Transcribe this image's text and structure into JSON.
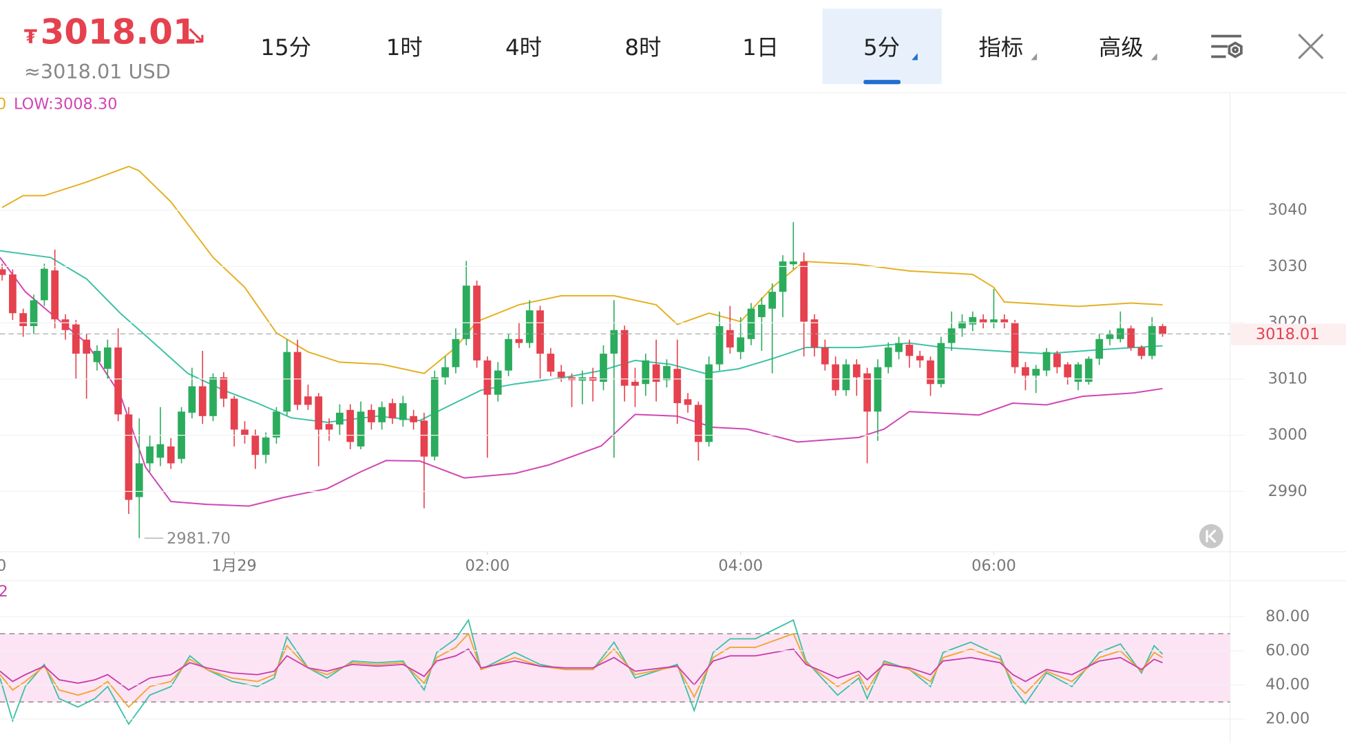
{
  "header": {
    "currency": "₮",
    "price": "3018.01",
    "arrow": "↘",
    "usd": "≈3018.01 USD",
    "tabs": [
      "15分",
      "1时",
      "4时",
      "8时",
      "1日",
      "5分",
      "指标",
      "高级"
    ]
  },
  "chart_data": {
    "type": "candlestick",
    "legend_texts": [
      "0",
      "LOW:3008.30"
    ],
    "up_color": "#2bac5c",
    "down_color": "#e5414e",
    "xlim": [
      -111,
      472
    ],
    "ylim": [
      2979.3,
      3060.9
    ],
    "xticks": [
      {
        "value": -120,
        "label": "0"
      },
      {
        "value": 0,
        "label": "1月29"
      },
      {
        "value": 120,
        "label": "02:00"
      },
      {
        "value": 240,
        "label": "04:00"
      },
      {
        "value": 360,
        "label": "06:00"
      }
    ],
    "yticks": [
      3040,
      3030,
      3020,
      3010,
      3000,
      2990
    ],
    "grid": true,
    "last_price": 3018.01,
    "low_marker": {
      "value": 2981.7,
      "label": "2981.70"
    },
    "x": [
      -110,
      -105,
      -100,
      -95,
      -90,
      -85,
      -80,
      -75,
      -70,
      -65,
      -60,
      -55,
      -50,
      -45,
      -40,
      -35,
      -30,
      -25,
      -20,
      -15,
      -10,
      -5,
      0,
      5,
      10,
      15,
      20,
      25,
      30,
      35,
      40,
      45,
      50,
      55,
      60,
      65,
      70,
      75,
      80,
      85,
      90,
      95,
      100,
      105,
      110,
      115,
      120,
      125,
      130,
      135,
      140,
      145,
      150,
      155,
      160,
      165,
      170,
      175,
      180,
      185,
      190,
      195,
      200,
      205,
      210,
      215,
      220,
      225,
      230,
      235,
      240,
      245,
      250,
      255,
      260,
      265,
      270,
      275,
      280,
      285,
      290,
      295,
      300,
      305,
      310,
      315,
      320,
      325,
      330,
      335,
      340,
      345,
      350,
      355,
      360,
      365,
      370,
      375,
      380,
      385,
      390,
      395,
      400,
      405,
      410,
      415,
      420,
      425,
      430,
      435,
      440
    ],
    "open": [
      3029.5,
      3028.6,
      3021.7,
      3019.4,
      3024,
      3029.3,
      3020.6,
      3019.7,
      3017,
      3013,
      3011.8,
      3015.6,
      3003.7,
      2989,
      2995,
      2996,
      2998,
      2995.8,
      3004,
      3008.7,
      3003.4,
      3010.3,
      3006.5,
      3001,
      3000,
      2996.5,
      2999.6,
      3004.2,
      3014.8,
      3006.9,
      3006.9,
      3002,
      3001.9,
      3004.5,
      2998,
      3004.5,
      3002.3,
      3005.7,
      3002.7,
      3003.4,
      3002.6,
      2996.2,
      3010.3,
      3012.1,
      3017.1,
      3026.6,
      3013.3,
      3007.2,
      3011.5,
      3017.1,
      3016.4,
      3022.2,
      3014.5,
      3011.3,
      3010.3,
      3009.7,
      3010.3,
      3009.5,
      3014.5,
      3018.7,
      3009.5,
      3009.1,
      3012.6,
      3009.8,
      3011.8,
      3006.4,
      3005.4,
      2998.8,
      3012.6,
      3018.7,
      3014.8,
      3017.1,
      3021,
      3022.5,
      3025.5,
      3030.4,
      3030.9,
      3020.6,
      3015.6,
      3012.6,
      3008,
      3012.6,
      3011,
      3004.2,
      3012.1,
      3014.8,
      3016.1,
      3014.1,
      3013.3,
      3009.1,
      3016.4,
      3019,
      3019.7,
      3020.6,
      3020,
      3020.6,
      3020,
      3012.1,
      3010.6,
      3011.5,
      3014.5,
      3012.6,
      3009.5,
      3009.5,
      3013.6,
      3017.1,
      3017.1,
      3019,
      3015.6,
      3014.1,
      3019.4
    ],
    "high": [
      3030.5,
      3029.5,
      3022.5,
      3025,
      3030.5,
      3033,
      3021.5,
      3020.5,
      3018,
      3016,
      3017,
      3019,
      3005,
      3003,
      3000,
      3005,
      2999.5,
      3005,
      3012,
      3015,
      3011,
      3011.2,
      3007,
      3002.5,
      3001,
      3000.5,
      3005,
      3017,
      3017,
      3009,
      3007.5,
      3003,
      3005.5,
      3005.5,
      3006,
      3005.5,
      3006,
      3006.5,
      3007,
      3004.5,
      3004,
      3011.5,
      3014,
      3019,
      3031,
      3027.5,
      3014,
      3013,
      3018,
      3020,
      3024,
      3023,
      3015.5,
      3012.5,
      3011,
      3011.5,
      3012,
      3016,
      3024,
      3019.5,
      3012,
      3014.5,
      3017,
      3013.5,
      3017,
      3007.5,
      3006,
      3014,
      3022,
      3023,
      3021,
      3023.5,
      3024.5,
      3027,
      3032,
      3037.9,
      3032.5,
      3021.5,
      3017,
      3014,
      3013.5,
      3013.5,
      3012,
      3013.5,
      3016.5,
      3017.5,
      3017,
      3015,
      3014,
      3017.5,
      3022,
      3021.5,
      3022,
      3021.5,
      3026,
      3021.5,
      3020.5,
      3013,
      3012.5,
      3015.5,
      3015,
      3013,
      3013,
      3014,
      3018,
      3018.7,
      3022,
      3019.5,
      3016,
      3021,
      3019.8
    ],
    "low": [
      3027.5,
      3020.5,
      3017.5,
      3018,
      3023,
      3019,
      3017,
      3010,
      3006.5,
      3011.5,
      3010,
      3002.5,
      2986,
      2981.7,
      2993.5,
      2994.5,
      2994,
      2995,
      3003,
      3002,
      3002.5,
      3005,
      2998,
      2998.5,
      2994,
      2995,
      2998.5,
      3003.5,
      3004.5,
      3004.5,
      2994.5,
      2999,
      3000,
      2997.5,
      2997.5,
      3001,
      3001,
      3002,
      3001.5,
      3001,
      2987,
      2995.5,
      3009,
      3011,
      3016,
      3012,
      2996,
      3006,
      3010.5,
      3015.5,
      3015.5,
      3010,
      3010.5,
      3009.5,
      3005,
      3005.5,
      3006,
      3008,
      2996,
      3006,
      3005,
      3007,
      3006,
      3008.5,
      3002,
      3004,
      2995.5,
      2998,
      3011.5,
      3014.5,
      3013.5,
      3016,
      3015,
      3011,
      3021,
      3029.5,
      3014,
      3014,
      3011.5,
      3007,
      3007,
      3007,
      2995,
      2999,
      3011,
      3013.5,
      3012,
      3012,
      3007,
      3008.5,
      3015,
      3017.5,
      3018.5,
      3019,
      3019,
      3019,
      3011,
      3008,
      3007.5,
      3010.5,
      3011,
      3009,
      3008,
      3009,
      3012.5,
      3016,
      3016.5,
      3015,
      3013.5,
      3013.5,
      3017.5
    ],
    "close": [
      3028.5,
      3021.7,
      3019.4,
      3024,
      3029.6,
      3020.6,
      3018.7,
      3014.5,
      3014.5,
      3015,
      3015.6,
      3003.7,
      2988.5,
      2995,
      2998,
      2998.4,
      2995,
      3004.2,
      3008.7,
      3003.4,
      3010.3,
      3006.5,
      3001,
      3000,
      2996.5,
      2999.6,
      3004.2,
      3014.8,
      3005.4,
      3005.4,
      3001,
      3001,
      3004,
      2998.8,
      3004.2,
      3002.3,
      3005,
      3003,
      3005.7,
      3002.3,
      2996.2,
      3010.3,
      3012.1,
      3017.1,
      3026.6,
      3013.3,
      3007.2,
      3011.5,
      3017.1,
      3016.4,
      3022.2,
      3014.5,
      3011.3,
      3010.3,
      3009.8,
      3010.3,
      3009.7,
      3014.5,
      3018.7,
      3008.8,
      3008.8,
      3013.3,
      3009.5,
      3012.3,
      3005.7,
      3005.4,
      2998.8,
      3012.6,
      3019.4,
      3015.6,
      3017.4,
      3022.5,
      3023.2,
      3025.5,
      3030.9,
      3030.9,
      3020.2,
      3015.6,
      3012.6,
      3008,
      3012.6,
      3010.3,
      3004.2,
      3012.1,
      3015.6,
      3016.4,
      3014.1,
      3013.3,
      3009.1,
      3016.4,
      3019,
      3020.2,
      3021,
      3020,
      3020.6,
      3020,
      3012.1,
      3010.6,
      3011.8,
      3014.8,
      3012.1,
      3010.3,
      3012.6,
      3013.6,
      3017.1,
      3017.9,
      3019,
      3015.6,
      3014.1,
      3019.4,
      3018.01
    ],
    "bands": [
      {
        "color": "#e5b021",
        "x": [
          -110,
          -100,
          -90,
          -70,
          -50,
          -45,
          -30,
          -10,
          5,
          20,
          35,
          50,
          70,
          90,
          105,
          115,
          135,
          155,
          180,
          200,
          210,
          225,
          240,
          255,
          270,
          295,
          320,
          350,
          360,
          365,
          400,
          425,
          440
        ],
        "values": [
          3040.5,
          3042.6,
          3042.6,
          3045,
          3047.8,
          3047,
          3041.5,
          3031.6,
          3026.3,
          3018.2,
          3014.8,
          3013,
          3012.6,
          3011,
          3015.6,
          3020.2,
          3023.2,
          3024.8,
          3024.8,
          3023.2,
          3019.7,
          3021.7,
          3020.2,
          3026.3,
          3030.9,
          3030.4,
          3029.2,
          3028.6,
          3026.3,
          3023.7,
          3022.9,
          3023.5,
          3023.2
        ]
      },
      {
        "color": "#3cc2a6",
        "x": [
          -111,
          -95,
          -87,
          -70,
          -54,
          -38,
          -22,
          -5,
          11,
          27,
          44,
          68,
          88,
          100,
          117,
          133,
          157,
          174,
          190,
          207,
          223,
          239,
          255,
          271,
          296,
          320,
          336,
          353,
          369,
          385,
          410,
          440
        ],
        "values": [
          3032.8,
          3032,
          3031.6,
          3027.8,
          3021.7,
          3016.4,
          3011,
          3008,
          3005.7,
          3003.1,
          3002.3,
          3003.4,
          3002.6,
          3004.9,
          3008,
          3009.1,
          3010.3,
          3011.5,
          3013.3,
          3012.6,
          3011,
          3011.8,
          3013.6,
          3015.6,
          3015.6,
          3016.4,
          3015.6,
          3015.2,
          3014.8,
          3014.5,
          3015.2,
          3015.9
        ]
      },
      {
        "color": "#d145b4",
        "x": [
          -111,
          -99,
          -87,
          -70,
          -54,
          -42,
          -30,
          -13,
          7,
          23,
          44,
          60,
          72,
          88,
          109,
          133,
          149,
          174,
          190,
          210,
          227,
          243,
          267,
          296,
          308,
          320,
          353,
          369,
          385,
          402,
          426,
          440
        ],
        "values": [
          3031.6,
          3025.5,
          3021.7,
          3016.4,
          3007.2,
          2994.3,
          2988.2,
          2987.7,
          2987.4,
          2988.9,
          2990.5,
          2993.5,
          2995.5,
          2995.4,
          2992.4,
          2993.2,
          2994.7,
          2998.1,
          3003.7,
          3003.4,
          3001.4,
          3001.1,
          2998.8,
          2999.6,
          3001.1,
          3004.2,
          3003.6,
          3005.7,
          3005.4,
          3006.9,
          3007.5,
          3008.3
        ]
      }
    ],
    "rsi": {
      "label": "2",
      "ylim": [
        8,
        101
      ],
      "yticks": [
        {
          "value": 80,
          "label": "80.00"
        },
        {
          "value": 60,
          "label": "60.00"
        },
        {
          "value": 40,
          "label": "40.00"
        },
        {
          "value": 20,
          "label": "20.00"
        }
      ],
      "levels": [
        70,
        30
      ],
      "x": [
        -111,
        -105,
        -99,
        -90,
        -83,
        -74,
        -66,
        -60,
        -50,
        -40,
        -30,
        -21,
        -13,
        -1,
        11,
        19,
        25,
        35,
        44,
        56,
        68,
        80,
        90,
        96,
        105,
        111,
        117,
        133,
        145,
        157,
        170,
        180,
        190,
        210,
        218,
        227,
        235,
        247,
        265,
        271,
        286,
        296,
        300,
        308,
        320,
        330,
        336,
        349,
        363,
        369,
        375,
        385,
        397,
        410,
        420,
        430,
        436,
        440
      ],
      "series": [
        {
          "color": "#3cc2a6",
          "values": [
            44,
            19,
            39,
            52,
            32,
            27,
            32,
            39,
            17,
            34,
            39,
            57,
            49,
            42,
            39,
            44,
            68,
            50,
            44,
            54,
            53,
            54,
            37,
            59,
            67,
            78,
            49,
            59,
            52,
            49,
            49,
            65,
            44,
            52,
            25,
            59,
            67,
            67,
            78,
            54,
            34,
            44,
            32,
            54,
            49,
            39,
            59,
            65,
            57,
            39,
            29,
            47,
            39,
            59,
            64,
            47,
            63,
            58
          ]
        },
        {
          "color": "#f0a530",
          "values": [
            46,
            37,
            42,
            51,
            37,
            34,
            37,
            42,
            27,
            39,
            42,
            55,
            49,
            44,
            42,
            46,
            63,
            50,
            46,
            53,
            52,
            53,
            41,
            56,
            62,
            70,
            49,
            56,
            51,
            49,
            49,
            61,
            46,
            51,
            33,
            56,
            62,
            62,
            70,
            53,
            39,
            46,
            37,
            53,
            49,
            42,
            56,
            61,
            55,
            42,
            35,
            48,
            42,
            56,
            60,
            48,
            59,
            56
          ]
        },
        {
          "color": "#c83fae",
          "values": [
            48,
            42,
            46,
            51,
            43,
            41,
            43,
            46,
            37,
            44,
            46,
            53,
            50,
            47,
            46,
            48,
            57,
            50,
            48,
            52,
            51,
            52,
            45,
            54,
            57,
            61,
            50,
            54,
            51,
            50,
            50,
            56,
            48,
            51,
            40,
            54,
            57,
            57,
            61,
            52,
            44,
            48,
            43,
            52,
            50,
            46,
            54,
            56,
            53,
            46,
            42,
            49,
            46,
            54,
            56,
            49,
            55,
            53
          ]
        }
      ]
    }
  }
}
